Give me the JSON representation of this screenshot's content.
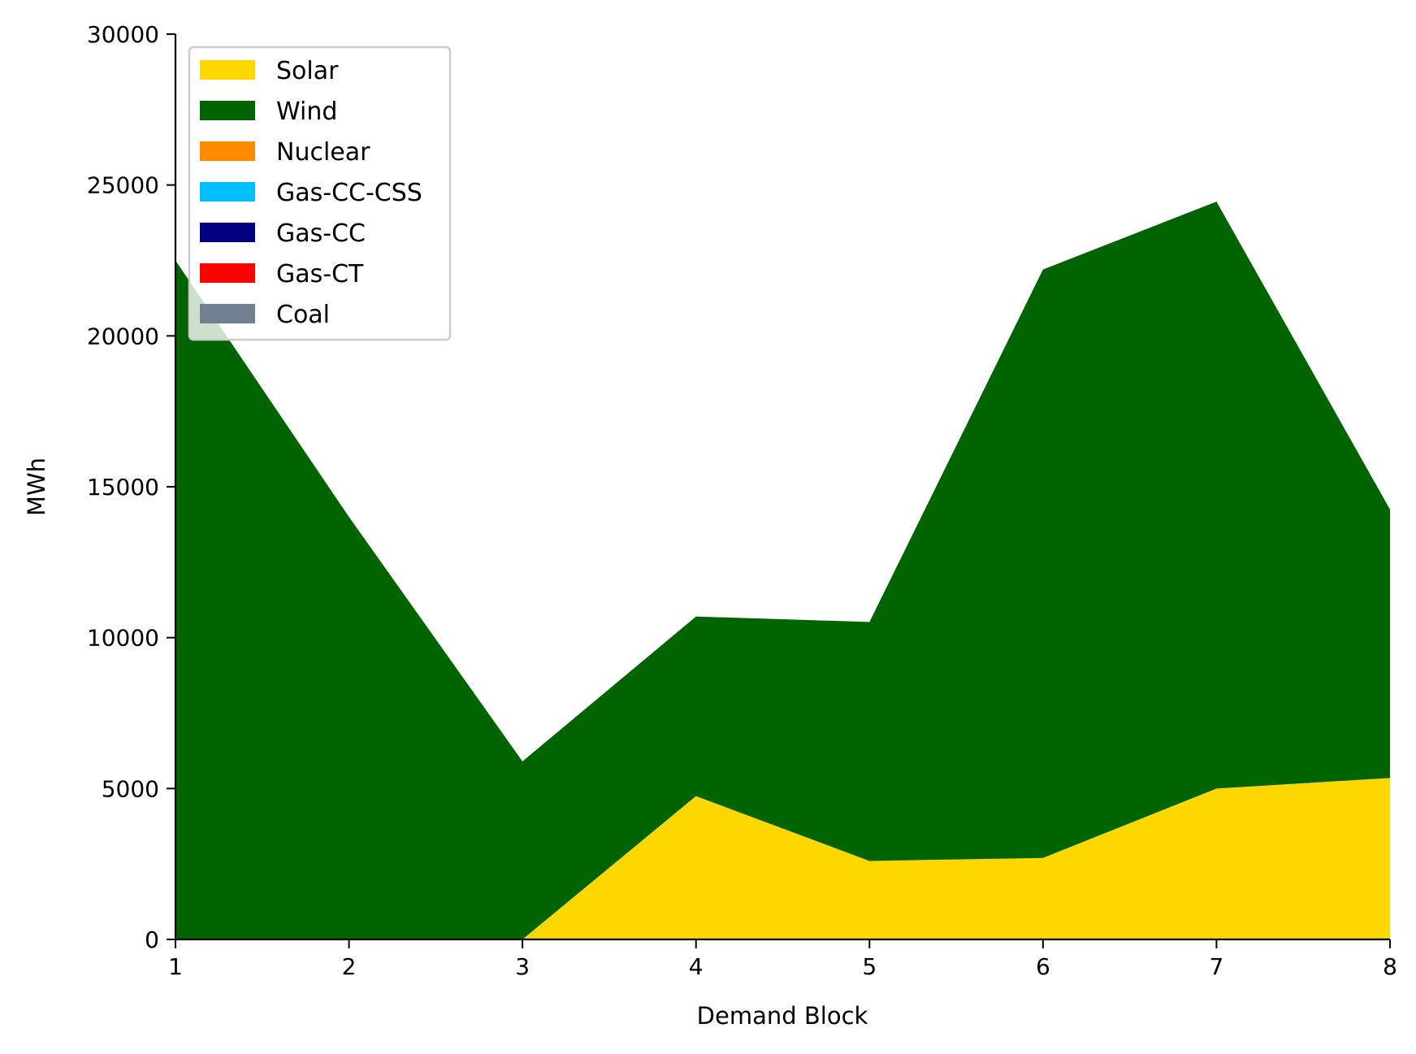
{
  "chart_data": {
    "type": "area",
    "stacked": true,
    "title": "",
    "xlabel": "Demand Block",
    "ylabel": "MWh",
    "x": [
      1,
      2,
      3,
      4,
      5,
      6,
      7,
      8
    ],
    "xlim": [
      1,
      8
    ],
    "ylim": [
      0,
      30000
    ],
    "xticks": [
      "1",
      "2",
      "3",
      "4",
      "5",
      "6",
      "7",
      "8"
    ],
    "yticks": [
      "0",
      "5000",
      "10000",
      "15000",
      "20000",
      "25000",
      "30000"
    ],
    "grid": false,
    "legend_position": "upper-left",
    "series": [
      {
        "name": "Solar",
        "color": "#ffd700",
        "values": [
          0,
          0,
          0,
          4750,
          2600,
          2700,
          5000,
          5350
        ]
      },
      {
        "name": "Wind",
        "color": "#006400",
        "values": [
          22500,
          14000,
          5900,
          5950,
          7920,
          19500,
          19450,
          8900
        ]
      },
      {
        "name": "Nuclear",
        "color": "#ff8c00",
        "values": [
          0,
          0,
          0,
          0,
          0,
          0,
          0,
          0
        ]
      },
      {
        "name": "Gas-CC-CSS",
        "color": "#00bfff",
        "values": [
          0,
          0,
          0,
          0,
          0,
          0,
          0,
          0
        ]
      },
      {
        "name": "Gas-CC",
        "color": "#000080",
        "values": [
          0,
          0,
          0,
          0,
          0,
          0,
          0,
          0
        ]
      },
      {
        "name": "Gas-CT",
        "color": "#ff0000",
        "values": [
          0,
          0,
          0,
          0,
          0,
          0,
          0,
          0
        ]
      },
      {
        "name": "Coal",
        "color": "#708090",
        "values": [
          0,
          0,
          0,
          0,
          0,
          0,
          0,
          0
        ]
      }
    ]
  }
}
